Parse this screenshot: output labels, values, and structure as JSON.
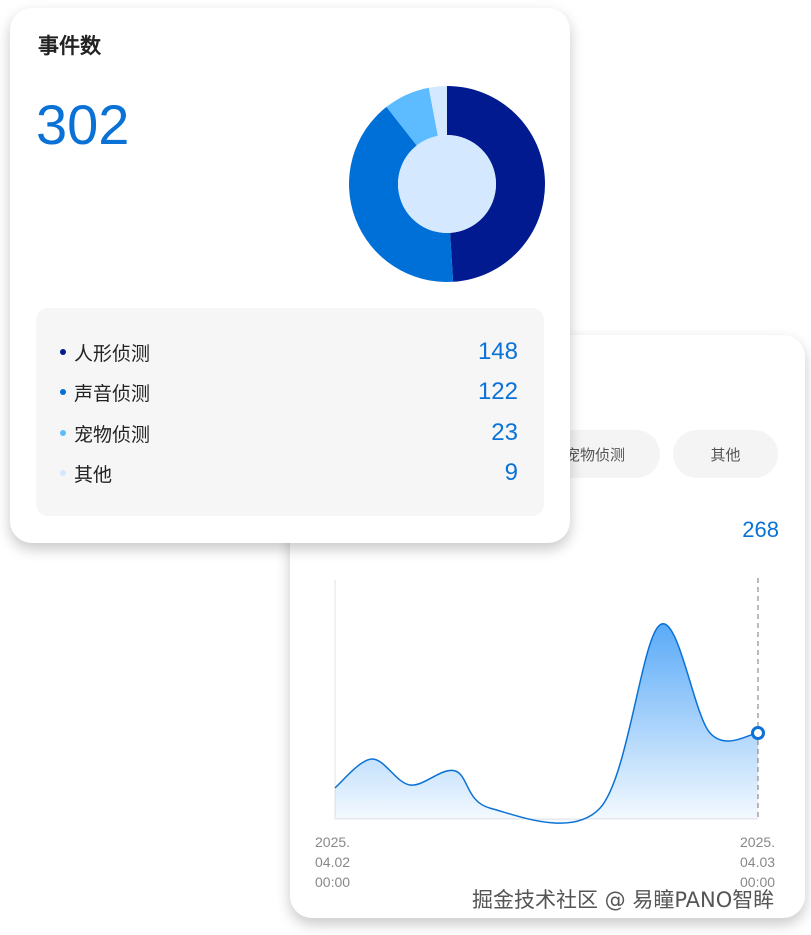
{
  "events_card": {
    "title": "事件数",
    "total": "302",
    "items": [
      {
        "label": "人形侦测",
        "value": 148,
        "color": "#021a8f"
      },
      {
        "label": "声音侦测",
        "value": 122,
        "color": "#0070d9"
      },
      {
        "label": "宠物侦测",
        "value": 23,
        "color": "#5cbcff"
      },
      {
        "label": "其他",
        "value": 9,
        "color": "#d4e8ff"
      }
    ]
  },
  "trend_card": {
    "tabs": [
      "宠物侦测",
      "其他"
    ],
    "current_value": "268",
    "chart_data": {
      "type": "area",
      "x_ticks": [
        "2025.\n04.02\n00:00",
        "2025.\n04.03\n00:00"
      ],
      "values": [
        97,
        187,
        106,
        150,
        34,
        34,
        605,
        268,
        268
      ],
      "highlight_last": true,
      "color": "#0a72d6"
    }
  },
  "watermark": "掘金技术社区 @ 易瞳PANO智眸"
}
